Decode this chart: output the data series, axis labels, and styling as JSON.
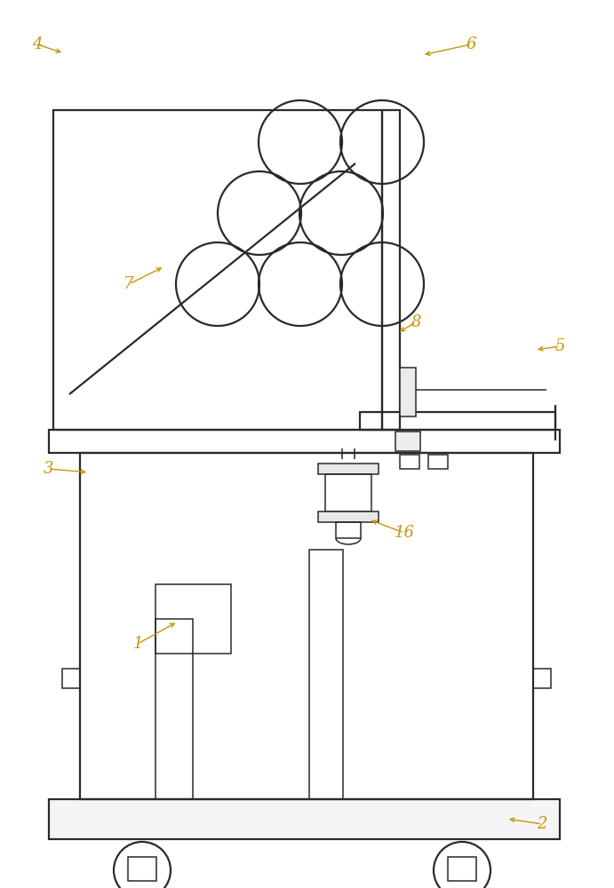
{
  "bg_color": "#ffffff",
  "line_color": "#2a2a2a",
  "label_color": "#c8960a",
  "lw": 1.6,
  "tlw": 1.1,
  "fig_width": 6.91,
  "fig_height": 10.0,
  "dpi": 100
}
